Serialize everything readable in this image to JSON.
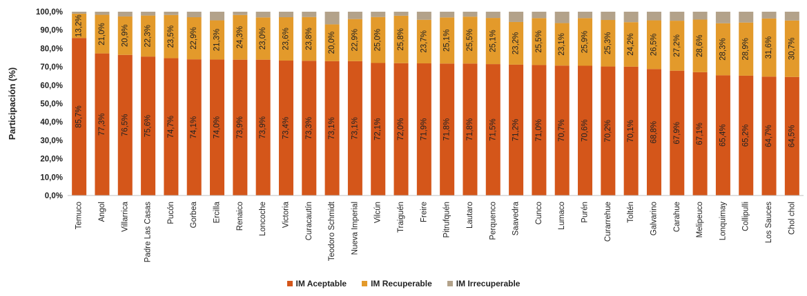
{
  "chart_data": {
    "type": "bar",
    "stacked": true,
    "ylabel": "Participación (%)",
    "ylim": [
      0,
      100
    ],
    "ytick_labels": [
      "0,0%",
      "10,0%",
      "20,0%",
      "30,0%",
      "40,0%",
      "50,0%",
      "60,0%",
      "70,0%",
      "80,0%",
      "90,0%",
      "100,0%"
    ],
    "legend_position": "bottom",
    "grid": false,
    "categories": [
      "Temuco",
      "Angol",
      "Villarrica",
      "Padre Las Casas",
      "Pucón",
      "Gorbea",
      "Ercilla",
      "Renaico",
      "Loncoche",
      "Victoria",
      "Curacautín",
      "Teodoro Schmidt",
      "Nueva Imperial",
      "Vilcún",
      "Traiguén",
      "Freire",
      "Pitrufquén",
      "Lautaro",
      "Perquenco",
      "Saavedra",
      "Cunco",
      "Lumaco",
      "Purén",
      "Curarrehue",
      "Toltén",
      "Galvarino",
      "Carahue",
      "Melipeuco",
      "Lonquimay",
      "Collipulli",
      "Los Sauces",
      "Chol chol"
    ],
    "series": [
      {
        "name": "IM Aceptable",
        "color": "#D4561A",
        "values": [
          85.7,
          77.3,
          76.5,
          75.6,
          74.7,
          74.1,
          74.0,
          73.9,
          73.9,
          73.4,
          73.3,
          73.1,
          73.1,
          72.1,
          72.0,
          71.9,
          71.8,
          71.8,
          71.5,
          71.2,
          71.0,
          70.7,
          70.6,
          70.2,
          70.1,
          68.8,
          67.9,
          67.1,
          65.4,
          65.2,
          64.7,
          64.5
        ],
        "labels": [
          "85,7%",
          "77,3%",
          "76,5%",
          "75,6%",
          "74,7%",
          "74,1%",
          "74,0%",
          "73,9%",
          "73,9%",
          "73,4%",
          "73,3%",
          "73,1%",
          "73,1%",
          "72,1%",
          "72,0%",
          "71,9%",
          "71,8%",
          "71,8%",
          "71,5%",
          "71,2%",
          "71,0%",
          "70,7%",
          "70,6%",
          "70,2%",
          "70,1%",
          "68,8%",
          "67,9%",
          "67,1%",
          "65,4%",
          "65,2%",
          "64,7%",
          "64,5%"
        ]
      },
      {
        "name": "IM Recuperable",
        "color": "#E39A2B",
        "values": [
          13.2,
          21.0,
          20.9,
          22.3,
          23.5,
          22.9,
          21.3,
          24.3,
          23.0,
          23.6,
          23.8,
          20.0,
          22.9,
          25.0,
          25.8,
          23.7,
          25.1,
          25.5,
          25.1,
          23.2,
          25.5,
          23.1,
          25.9,
          25.3,
          24.2,
          26.5,
          27.2,
          28.6,
          28.3,
          28.9,
          31.6,
          30.7
        ],
        "labels": [
          "13,2%",
          "21,0%",
          "20,9%",
          "22,3%",
          "23,5%",
          "22,9%",
          "21,3%",
          "24,3%",
          "23,0%",
          "23,6%",
          "23,8%",
          "20,0%",
          "22,9%",
          "25,0%",
          "25,8%",
          "23,7%",
          "25,1%",
          "25,5%",
          "25,1%",
          "23,2%",
          "25,5%",
          "23,1%",
          "25,9%",
          "25,3%",
          "24,2%",
          "26,5%",
          "27,2%",
          "28,6%",
          "28,3%",
          "28,9%",
          "31,6%",
          "30,7%"
        ]
      },
      {
        "name": "IM Irrecuperable",
        "color": "#B3A28A",
        "values": [
          1.1,
          1.7,
          2.6,
          2.1,
          1.8,
          3.0,
          4.7,
          1.8,
          3.1,
          3.0,
          2.9,
          6.9,
          4.0,
          2.9,
          2.2,
          4.4,
          3.1,
          2.7,
          3.4,
          5.6,
          3.5,
          6.2,
          3.5,
          4.5,
          5.7,
          4.7,
          4.9,
          4.3,
          6.3,
          5.9,
          3.7,
          4.8
        ]
      }
    ]
  }
}
